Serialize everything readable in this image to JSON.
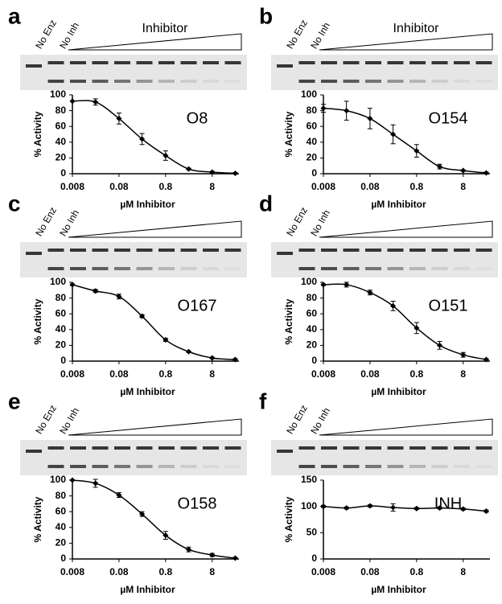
{
  "chart_data": [
    {
      "type": "line",
      "label": "a",
      "lanes": [
        "No Enz",
        "No Inh"
      ],
      "gradient_label": "Inhibitor",
      "annotation": "O8",
      "xlabel": "µM Inhibitor",
      "ylabel": "% Activity",
      "log_x": true,
      "color": "#000000",
      "x": [
        0.008,
        0.025,
        0.08,
        0.25,
        0.8,
        2.5,
        8,
        25
      ],
      "values": [
        92,
        91,
        70,
        44,
        23,
        6,
        2,
        0.5
      ],
      "errors": [
        0,
        4,
        7,
        7,
        6,
        1,
        1,
        1
      ],
      "xlim": [
        0.008,
        30
      ],
      "ylim": [
        0,
        100
      ],
      "xticks": [
        0.008,
        0.08,
        0.8,
        8
      ],
      "yticks": [
        0,
        20,
        40,
        60,
        80,
        100
      ]
    },
    {
      "type": "line",
      "label": "b",
      "lanes": [
        "No Enz",
        "No Inh"
      ],
      "gradient_label": "Inhibitor",
      "annotation": "O154",
      "xlabel": "µM Inhibitor",
      "ylabel": "% Activity",
      "log_x": true,
      "color": "#000000",
      "x": [
        0.008,
        0.025,
        0.08,
        0.25,
        0.8,
        2.5,
        8,
        25
      ],
      "values": [
        83,
        80,
        70,
        50,
        29,
        9,
        4,
        1
      ],
      "errors": [
        5,
        12,
        13,
        12,
        8,
        3,
        1,
        1
      ],
      "xlim": [
        0.008,
        30
      ],
      "ylim": [
        0,
        100
      ],
      "xticks": [
        0.008,
        0.08,
        0.8,
        8
      ],
      "yticks": [
        0,
        20,
        40,
        60,
        80,
        100
      ]
    },
    {
      "type": "line",
      "label": "c",
      "lanes": [
        "No Enz",
        "No Inh"
      ],
      "annotation": "O167",
      "xlabel": "µM Inhibitor",
      "ylabel": "% Activity",
      "log_x": true,
      "color": "#000000",
      "x": [
        0.008,
        0.025,
        0.08,
        0.25,
        0.8,
        2.5,
        8,
        25
      ],
      "values": [
        97,
        89,
        82,
        57,
        27,
        12,
        4,
        2
      ],
      "errors": [
        1,
        2,
        3,
        2,
        2,
        1,
        1,
        1
      ],
      "xlim": [
        0.008,
        30
      ],
      "ylim": [
        0,
        100
      ],
      "xticks": [
        0.008,
        0.08,
        0.8,
        8
      ],
      "yticks": [
        0,
        20,
        40,
        60,
        80,
        100
      ]
    },
    {
      "type": "line",
      "label": "d",
      "lanes": [
        "No Enz",
        "No Inh"
      ],
      "annotation": "O151",
      "xlabel": "µM Inhibitor",
      "ylabel": "% Activity",
      "log_x": true,
      "color": "#000000",
      "x": [
        0.008,
        0.025,
        0.08,
        0.25,
        0.8,
        2.5,
        8,
        25
      ],
      "values": [
        97,
        97,
        87,
        70,
        42,
        20,
        8,
        2
      ],
      "errors": [
        1,
        3,
        3,
        6,
        7,
        5,
        3,
        1
      ],
      "xlim": [
        0.008,
        30
      ],
      "ylim": [
        0,
        100
      ],
      "xticks": [
        0.008,
        0.08,
        0.8,
        8
      ],
      "yticks": [
        0,
        20,
        40,
        60,
        80,
        100
      ]
    },
    {
      "type": "line",
      "label": "e",
      "lanes": [
        "No Enz",
        "No Inh"
      ],
      "annotation": "O158",
      "xlabel": "µM Inhibitor",
      "ylabel": "% Activity",
      "log_x": true,
      "color": "#000000",
      "x": [
        0.008,
        0.025,
        0.08,
        0.25,
        0.8,
        2.5,
        8,
        25
      ],
      "values": [
        100,
        96,
        81,
        57,
        30,
        12,
        5,
        1
      ],
      "errors": [
        0,
        5,
        3,
        3,
        5,
        3,
        2,
        1
      ],
      "xlim": [
        0.008,
        30
      ],
      "ylim": [
        0,
        100
      ],
      "xticks": [
        0.008,
        0.08,
        0.8,
        8
      ],
      "yticks": [
        0,
        20,
        40,
        60,
        80,
        100
      ]
    },
    {
      "type": "line",
      "label": "f",
      "lanes": [
        "No Enz",
        "No Inh"
      ],
      "annotation": "INH",
      "xlabel": "µM Inhibitor",
      "ylabel": "% Activity",
      "log_x": true,
      "color": "#000000",
      "x": [
        0.008,
        0.025,
        0.08,
        0.25,
        0.8,
        2.5,
        8,
        25
      ],
      "values": [
        100,
        97,
        101,
        98,
        96,
        97,
        95,
        91
      ],
      "errors": [
        2,
        2,
        2,
        7,
        2,
        2,
        2,
        2
      ],
      "xlim": [
        0.008,
        30
      ],
      "ylim": [
        0,
        150
      ],
      "xticks": [
        0.008,
        0.08,
        0.8,
        8
      ],
      "yticks": [
        0,
        50,
        100,
        150
      ]
    }
  ]
}
